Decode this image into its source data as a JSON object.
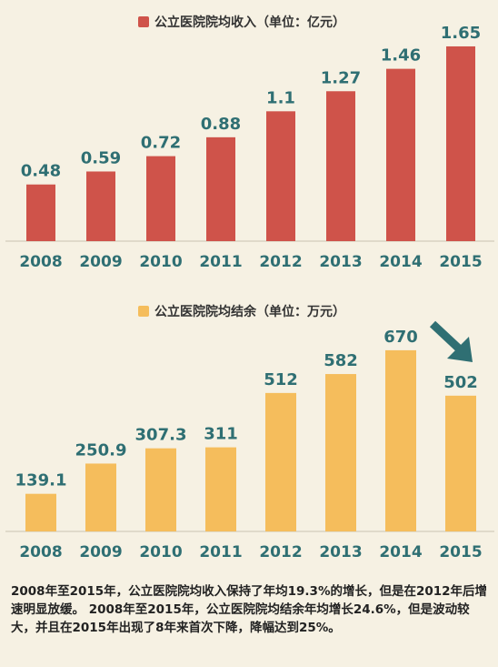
{
  "chart_data": [
    {
      "type": "bar",
      "title": "公立医院院均收入（单位：亿元）",
      "categories": [
        "2008",
        "2009",
        "2010",
        "2011",
        "2012",
        "2013",
        "2014",
        "2015"
      ],
      "values": [
        0.48,
        0.59,
        0.72,
        0.88,
        1.1,
        1.27,
        1.46,
        1.65
      ],
      "value_labels": [
        "0.48",
        "0.59",
        "0.72",
        "0.88",
        "1.1",
        "1.27",
        "1.46",
        "1.65"
      ],
      "ylim": [
        0,
        1.75
      ],
      "color": "#cf534a",
      "grid": false,
      "legend": "top-center"
    },
    {
      "type": "bar",
      "title": "公立医院院均结余（单位：万元）",
      "categories": [
        "2008",
        "2009",
        "2010",
        "2011",
        "2012",
        "2013",
        "2014",
        "2015"
      ],
      "values": [
        139.1,
        250.9,
        307.3,
        311,
        512,
        582,
        670,
        502
      ],
      "value_labels": [
        "139.1",
        "250.9",
        "307.3",
        "311",
        "512",
        "582",
        "670",
        "502"
      ],
      "ylim": [
        0,
        700
      ],
      "color": "#f5bd5c",
      "grid": false,
      "legend": "top-center",
      "annotation": "down-arrow-icon"
    }
  ],
  "caption": "2008年至2015年，公立医院院均收入保持了年均19.3%的增长，但是在2012年后增速明显放缓。 2008年至2015年，公立医院院均结余年均增长24.6%，但是波动较大，并且在2015年出现了8年来首次下降，降幅达到25%。",
  "colors": {
    "text_accent": "#2f6f73",
    "arrow": "#2f6f73"
  }
}
